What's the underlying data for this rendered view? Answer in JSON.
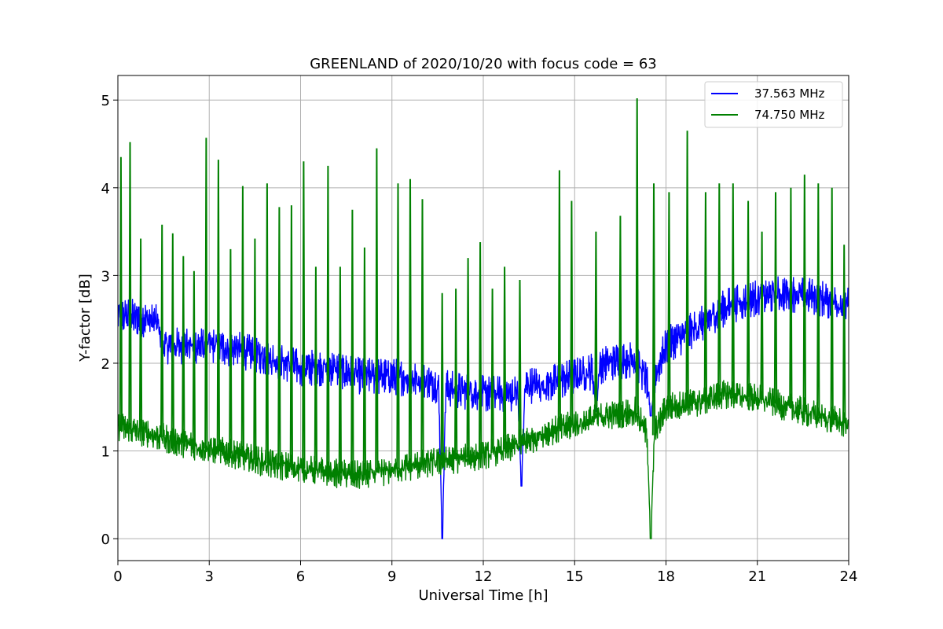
{
  "chart_data": {
    "type": "line",
    "title": "GREENLAND of 2020/10/20 with focus code = 63",
    "xlabel": "Universal Time [h]",
    "ylabel": "Y-factor [dB]",
    "xlim": [
      0,
      24
    ],
    "ylim": [
      -0.25,
      5.28
    ],
    "xticks": [
      0,
      3,
      6,
      9,
      12,
      15,
      18,
      21,
      24
    ],
    "yticks": [
      0,
      1,
      2,
      3,
      4,
      5
    ],
    "grid": true,
    "legend_position": "top-right",
    "series": [
      {
        "name": "37.563 MHz",
        "color": "#0000ff",
        "band_width": 0.28,
        "baseline": [
          [
            0,
            2.55
          ],
          [
            1,
            2.5
          ],
          [
            1.3,
            2.45
          ],
          [
            1.5,
            2.2
          ],
          [
            2,
            2.2
          ],
          [
            3,
            2.2
          ],
          [
            4,
            2.15
          ],
          [
            5,
            2.05
          ],
          [
            6,
            1.95
          ],
          [
            7,
            1.95
          ],
          [
            8,
            1.85
          ],
          [
            9,
            1.85
          ],
          [
            10,
            1.8
          ],
          [
            11,
            1.7
          ],
          [
            12,
            1.65
          ],
          [
            13,
            1.65
          ],
          [
            13.5,
            1.75
          ],
          [
            14,
            1.75
          ],
          [
            15,
            1.85
          ],
          [
            15.5,
            1.9
          ],
          [
            16,
            2.0
          ],
          [
            17,
            2.05
          ],
          [
            17.5,
            1.7
          ],
          [
            17.8,
            2.0
          ],
          [
            18,
            2.2
          ],
          [
            19,
            2.4
          ],
          [
            20,
            2.65
          ],
          [
            21,
            2.75
          ],
          [
            22,
            2.8
          ],
          [
            23,
            2.75
          ],
          [
            24,
            2.65
          ]
        ],
        "dips": [
          [
            10.65,
            0.0
          ],
          [
            13.25,
            0.6
          ],
          [
            17.5,
            1.4
          ],
          [
            15.7,
            1.45
          ]
        ]
      },
      {
        "name": "74.750 MHz",
        "color": "#008000",
        "band_width": 0.22,
        "baseline": [
          [
            0,
            1.28
          ],
          [
            1,
            1.2
          ],
          [
            2,
            1.1
          ],
          [
            3,
            1.02
          ],
          [
            4,
            0.95
          ],
          [
            5,
            0.85
          ],
          [
            6,
            0.8
          ],
          [
            7,
            0.75
          ],
          [
            8,
            0.72
          ],
          [
            9,
            0.78
          ],
          [
            10,
            0.85
          ],
          [
            11,
            0.9
          ],
          [
            12,
            0.95
          ],
          [
            13,
            1.05
          ],
          [
            14,
            1.2
          ],
          [
            15,
            1.3
          ],
          [
            16,
            1.4
          ],
          [
            17,
            1.45
          ],
          [
            17.5,
            1.1
          ],
          [
            18,
            1.5
          ],
          [
            19,
            1.55
          ],
          [
            20,
            1.65
          ],
          [
            21,
            1.6
          ],
          [
            22,
            1.5
          ],
          [
            23,
            1.4
          ],
          [
            24,
            1.3
          ]
        ],
        "dips": [
          [
            17.5,
            0.0
          ]
        ],
        "spikes": [
          [
            0.1,
            4.35
          ],
          [
            0.4,
            4.52
          ],
          [
            0.75,
            3.42
          ],
          [
            1.45,
            3.58
          ],
          [
            1.8,
            3.48
          ],
          [
            2.15,
            3.22
          ],
          [
            2.5,
            3.05
          ],
          [
            2.9,
            4.57
          ],
          [
            3.3,
            4.32
          ],
          [
            3.7,
            3.3
          ],
          [
            4.1,
            4.02
          ],
          [
            4.5,
            3.42
          ],
          [
            4.9,
            4.05
          ],
          [
            5.3,
            3.78
          ],
          [
            5.7,
            3.8
          ],
          [
            6.1,
            4.3
          ],
          [
            6.5,
            3.1
          ],
          [
            6.9,
            4.25
          ],
          [
            7.3,
            3.1
          ],
          [
            7.7,
            3.75
          ],
          [
            8.1,
            3.32
          ],
          [
            8.5,
            4.45
          ],
          [
            9.2,
            4.05
          ],
          [
            9.6,
            4.1
          ],
          [
            10.0,
            3.87
          ],
          [
            10.65,
            2.8
          ],
          [
            11.1,
            2.85
          ],
          [
            11.5,
            3.2
          ],
          [
            11.9,
            3.38
          ],
          [
            12.3,
            2.85
          ],
          [
            12.7,
            3.1
          ],
          [
            13.2,
            2.95
          ],
          [
            14.5,
            4.2
          ],
          [
            14.9,
            3.85
          ],
          [
            15.7,
            3.5
          ],
          [
            16.5,
            3.68
          ],
          [
            17.05,
            5.02
          ],
          [
            17.6,
            4.05
          ],
          [
            18.1,
            3.95
          ],
          [
            18.7,
            4.65
          ],
          [
            19.3,
            3.95
          ],
          [
            19.75,
            4.05
          ],
          [
            20.2,
            4.05
          ],
          [
            20.7,
            3.85
          ],
          [
            21.15,
            3.5
          ],
          [
            21.6,
            3.95
          ],
          [
            22.1,
            4.0
          ],
          [
            22.55,
            4.15
          ],
          [
            23.0,
            4.05
          ],
          [
            23.45,
            4.0
          ],
          [
            23.85,
            3.35
          ]
        ]
      }
    ]
  }
}
